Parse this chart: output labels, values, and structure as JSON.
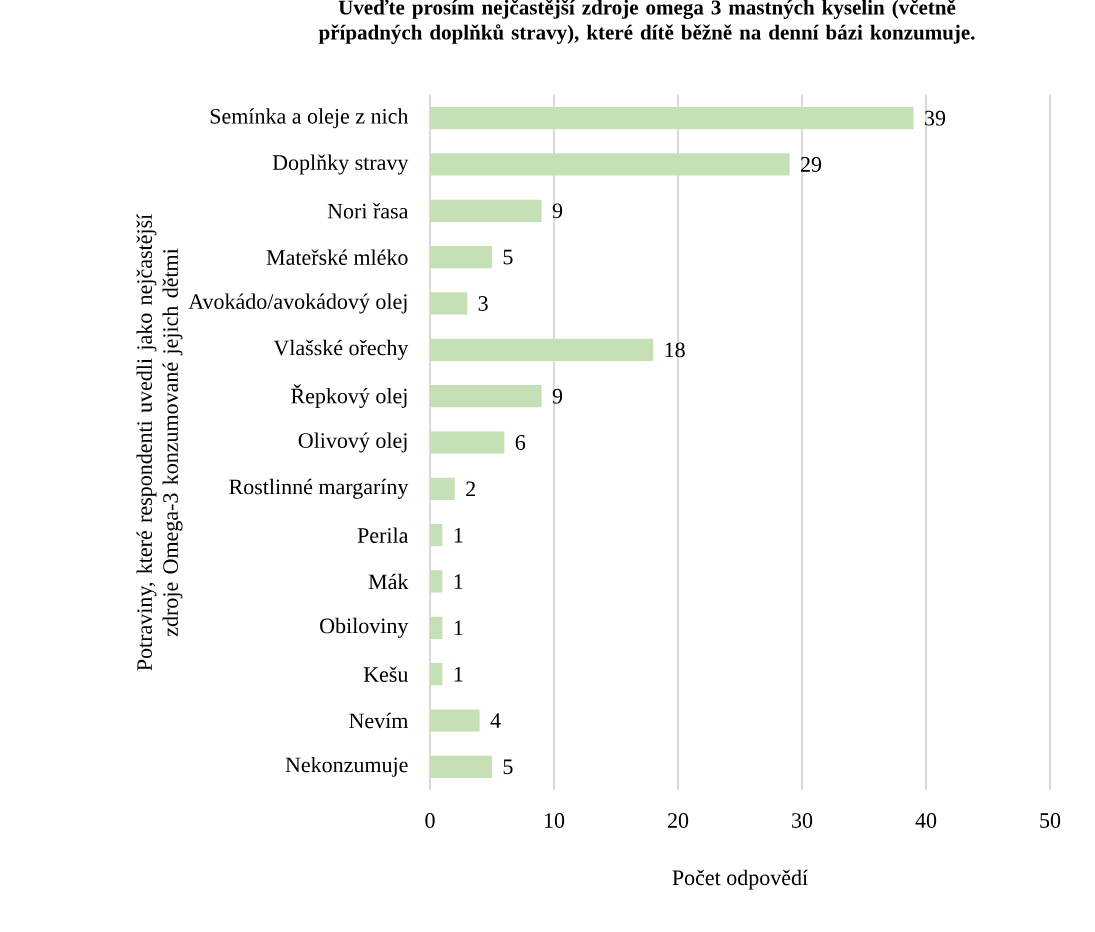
{
  "chart_data": {
    "type": "bar",
    "orientation": "horizontal",
    "title": "Uveďte prosím nejčastější zdroje omega 3 mastných kyselin (včetně případných doplňků stravy), které dítě běžně na denní bázi konzumuje.",
    "xlabel": "Počet odpovědí",
    "ylabel": "Potraviny, které respondenti uvedli jako nejčastější zdroje Omega-3 konzumované jejich dětmi",
    "categories": [
      "Semínka a oleje z nich",
      "Doplňky stravy",
      "Nori řasa",
      "Mateřské mléko",
      "Avokádo/avokádový olej",
      "Vlašské ořechy",
      "Řepkový olej",
      "Olivový olej",
      "Rostlinné margaríny",
      "Perila",
      "Mák",
      "Obiloviny",
      "Kešu",
      "Nevím",
      "Nekonzumuje"
    ],
    "values": [
      39,
      29,
      9,
      5,
      3,
      18,
      9,
      6,
      2,
      1,
      1,
      1,
      1,
      4,
      5
    ],
    "color": "#c5e0b4",
    "xlim": [
      0,
      50
    ],
    "xticks": [
      0,
      10,
      20,
      30,
      40,
      50
    ],
    "grid": "x",
    "data_labels": true
  }
}
